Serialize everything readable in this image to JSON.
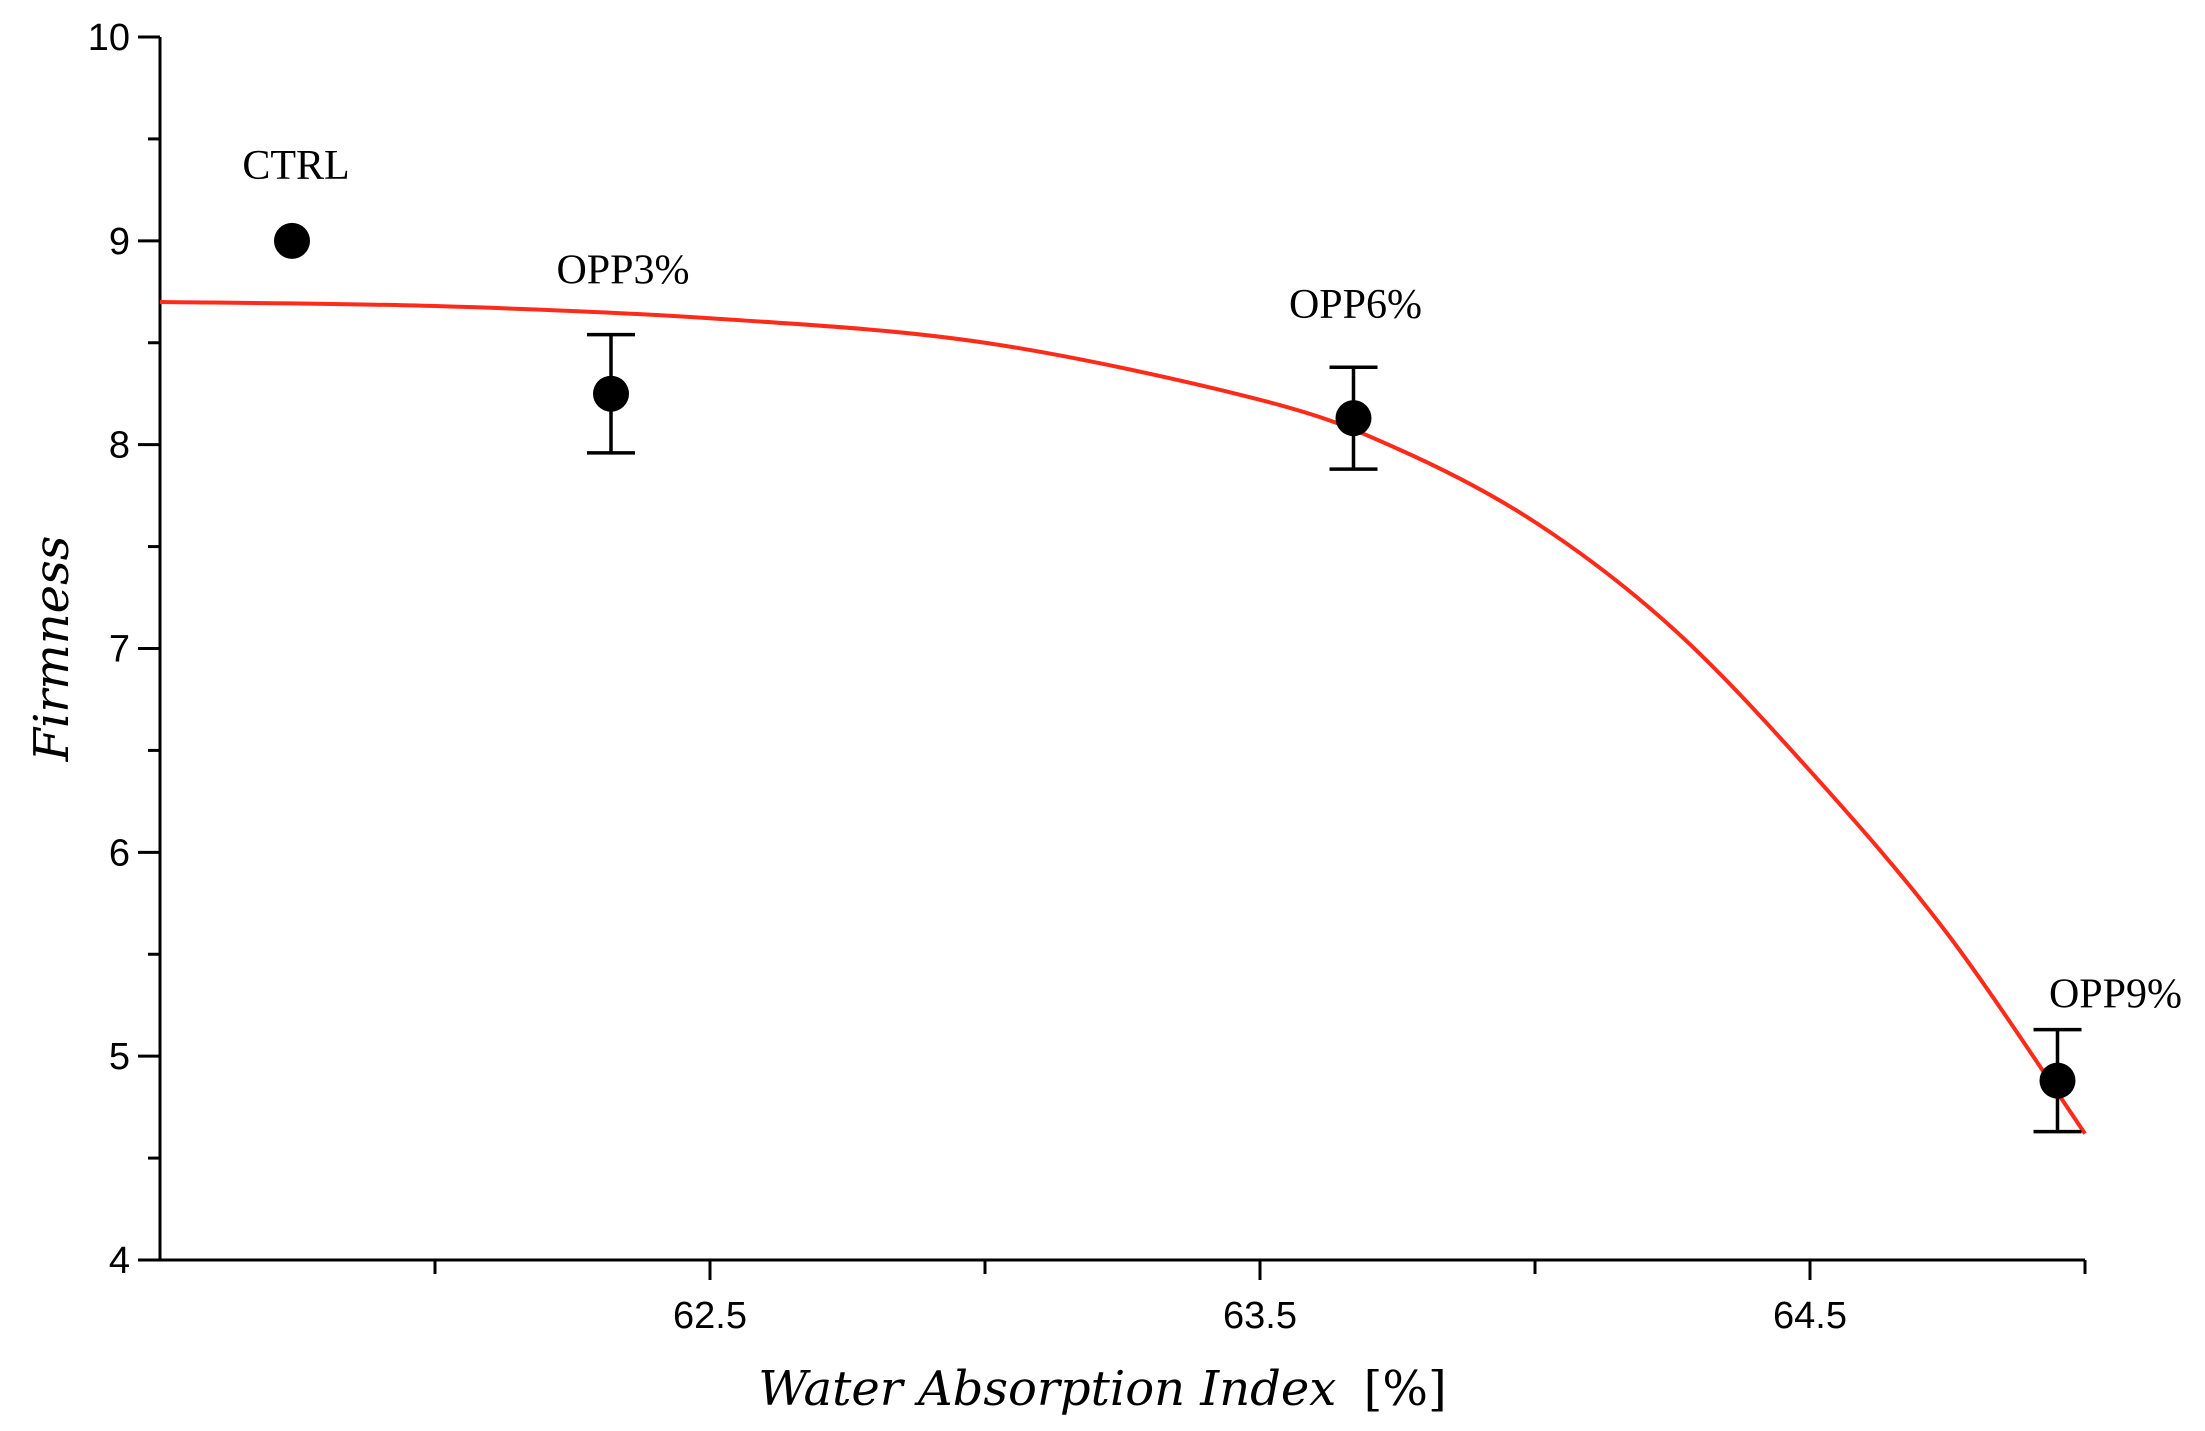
{
  "chart_data": {
    "type": "scatter",
    "title": "",
    "xlabel": "Water Absorption Index",
    "xlabel_unit": "[%]",
    "ylabel": "Firmness",
    "xlim": [
      61.5,
      65.0
    ],
    "ylim": [
      4,
      10
    ],
    "x_ticks_major": [
      62.5,
      63.5,
      64.5
    ],
    "x_ticks_minor": [
      62.0,
      63.0,
      64.0
    ],
    "y_ticks": [
      4,
      5,
      6,
      7,
      8,
      9,
      10
    ],
    "grid": false,
    "legend": "none",
    "points": [
      {
        "label": "CTRL",
        "x": 61.74,
        "y": 9.0,
        "err": null
      },
      {
        "label": "OPP3%",
        "x": 62.32,
        "y": 8.25,
        "err": 0.29
      },
      {
        "label": "OPP6%",
        "x": 63.67,
        "y": 8.13,
        "err": 0.25
      },
      {
        "label": "OPP9%",
        "x": 64.95,
        "y": 4.88,
        "err": 0.25
      }
    ],
    "fit_curve": {
      "color": "#ff2a1a",
      "description": "exponential-type decay fit",
      "x": [
        61.5,
        62.0,
        62.5,
        63.0,
        63.5,
        63.75,
        64.0,
        64.25,
        64.5,
        64.75,
        65.0
      ],
      "y": [
        8.7,
        8.68,
        8.62,
        8.5,
        8.22,
        7.98,
        7.62,
        7.1,
        6.4,
        5.6,
        4.62
      ]
    }
  }
}
